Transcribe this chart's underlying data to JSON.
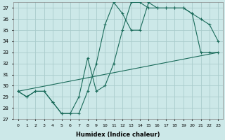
{
  "xlabel": "Humidex (Indice chaleur)",
  "bg_color": "#cce8e8",
  "grid_color": "#aacccc",
  "line_color": "#1a6b5a",
  "xlim": [
    -0.5,
    23.5
  ],
  "ylim": [
    27,
    37.5
  ],
  "xticks": [
    0,
    1,
    2,
    3,
    4,
    5,
    6,
    7,
    8,
    9,
    10,
    11,
    12,
    13,
    14,
    15,
    16,
    17,
    18,
    19,
    20,
    21,
    22,
    23
  ],
  "yticks": [
    27,
    28,
    29,
    30,
    31,
    32,
    33,
    34,
    35,
    36,
    37
  ],
  "line1_x": [
    0,
    1,
    2,
    3,
    4,
    5,
    6,
    7,
    8,
    9,
    10,
    11,
    12,
    13,
    14,
    15,
    16,
    17,
    18,
    19,
    20,
    21,
    22,
    23
  ],
  "line1_y": [
    29.5,
    29,
    29.5,
    29.5,
    28.5,
    27.5,
    27.5,
    27.5,
    29.5,
    32,
    35.5,
    37.5,
    36.5,
    35,
    35,
    37.5,
    37,
    37,
    37,
    37,
    36.5,
    36,
    35.5,
    34
  ],
  "line2_x": [
    0,
    1,
    2,
    3,
    4,
    5,
    6,
    7,
    8,
    9,
    10,
    11,
    12,
    13,
    14,
    15,
    16,
    17,
    18,
    19,
    20,
    21,
    22,
    23
  ],
  "line2_y": [
    29.5,
    29,
    29.5,
    29.5,
    28.5,
    27.5,
    27.5,
    29,
    32.5,
    29.5,
    30,
    32,
    35,
    37.5,
    37.5,
    37,
    37,
    37,
    37,
    37,
    36.5,
    33,
    33,
    33
  ],
  "line3_x": [
    0,
    23
  ],
  "line3_y": [
    29.5,
    33
  ]
}
